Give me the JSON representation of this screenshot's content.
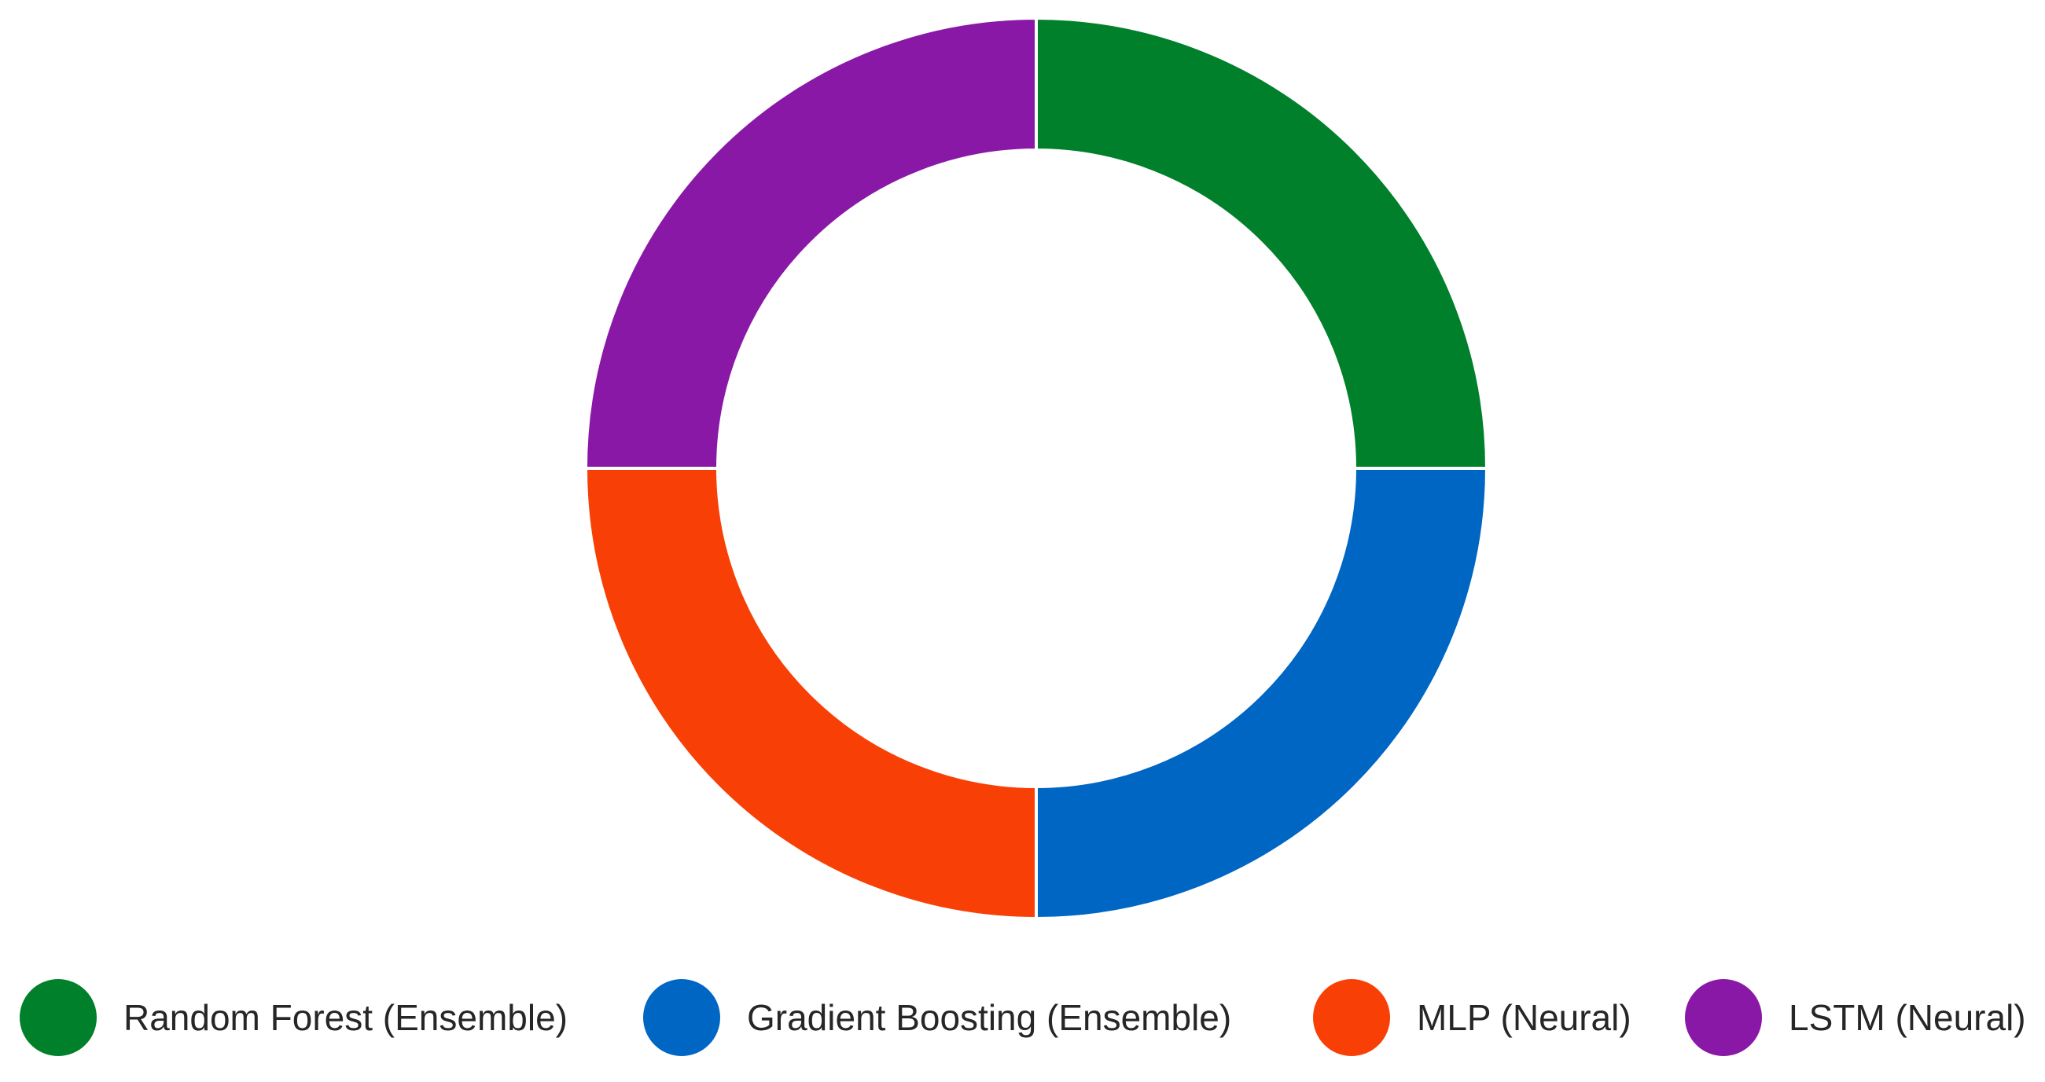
{
  "chart_data": {
    "type": "pie",
    "donut": true,
    "title": "",
    "categories": [
      "Random Forest (Ensemble)",
      "Gradient Boosting (Ensemble)",
      "MLP (Neural)",
      "LSTM (Neural)"
    ],
    "values": [
      25,
      25,
      25,
      25
    ],
    "colors": [
      "#00802B",
      "#0066C4",
      "#F84006",
      "#8A18A6"
    ],
    "legend_placement": "bottom",
    "start": "top",
    "direction": "clockwise"
  },
  "legend": {
    "items": [
      {
        "label": "Random Forest (Ensemble)",
        "color": "#00802B"
      },
      {
        "label": "Gradient Boosting (Ensemble)",
        "color": "#0066C4"
      },
      {
        "label": "MLP (Neural)",
        "color": "#F84006"
      },
      {
        "label": "LSTM (Neural)",
        "color": "#8A18A6"
      }
    ]
  }
}
